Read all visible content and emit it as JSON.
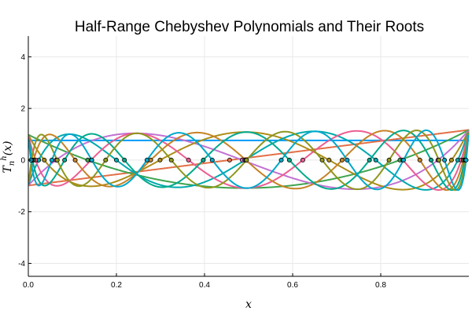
{
  "chart_data": {
    "type": "line",
    "title": "Half-Range Chebyshev Polynomials and Their Roots",
    "xlabel": "x",
    "ylabel": "T_n^h(x)",
    "xlim": [
      0,
      1
    ],
    "ylim": [
      -4.5,
      4.8
    ],
    "x_ticks": [
      0.0,
      0.2,
      0.4,
      0.6,
      0.8
    ],
    "x_tick_labels": [
      "0.0",
      "0.2",
      "0.4",
      "0.6",
      "0.8"
    ],
    "y_ticks": [
      -4,
      -2,
      0,
      2,
      4
    ],
    "y_tick_labels": [
      "-4",
      "-2",
      "0",
      "2",
      "4"
    ],
    "grid": true,
    "legend": "none",
    "series": [
      {
        "n": 0,
        "color": "#009AFA",
        "values_description": "constant"
      },
      {
        "n": 1,
        "color": "#E36F47"
      },
      {
        "n": 2,
        "color": "#3EA44E"
      },
      {
        "n": 3,
        "color": "#C271D2"
      },
      {
        "n": 4,
        "color": "#AC8D18"
      },
      {
        "n": 5,
        "color": "#00A9AD"
      },
      {
        "n": 6,
        "color": "#ED5D92"
      },
      {
        "n": 7,
        "color": "#C68225"
      },
      {
        "n": 8,
        "color": "#00A98D"
      },
      {
        "n": 9,
        "color": "#8E971E"
      },
      {
        "n": 10,
        "color": "#00A8CB"
      }
    ],
    "constant_value": 0.76,
    "roots_color": "#00A8CB"
  }
}
